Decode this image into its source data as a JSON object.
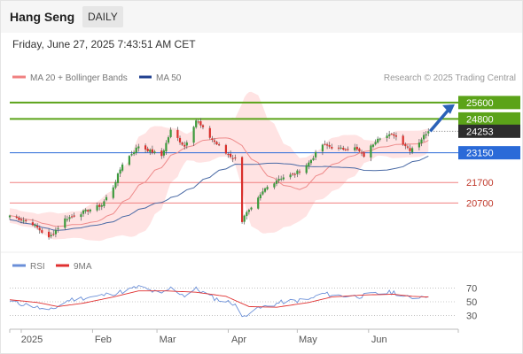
{
  "header": {
    "title": "Hang Seng",
    "timeframe": "DAILY"
  },
  "datetime": "Friday, June 27, 2025 7:43:51 AM CET",
  "legend": {
    "ma20": "MA 20 + Bollinger Bands",
    "ma50": "MA 50",
    "credit": "Research © 2025 Trading Central"
  },
  "rsi_legend": {
    "rsi": "RSI",
    "ma9": "9MA"
  },
  "colors": {
    "bull": "#3c9a3c",
    "bear": "#d9302c",
    "band": "#ffd9d9",
    "ma20": "#ee8b8b",
    "ma50": "#4a6aa5",
    "green_level": "#5ba319",
    "blue_level": "#2a6ad8",
    "red_level": "#f08080",
    "price_box": "#2d2d2d",
    "rsi": "#6a8fd8",
    "rsi_ma": "#e03030",
    "arrow": "#2b62b8"
  },
  "chart_data": [
    {
      "type": "candlestick",
      "title": "Hang Seng",
      "timeframe": "DAILY",
      "xlim": [
        "2024-12-27",
        "2025-07-10"
      ],
      "ylim": [
        18300,
        26500
      ],
      "x_ticks": [
        "2025",
        "Feb",
        "Mar",
        "Apr",
        "May",
        "Jun"
      ],
      "last_price": "24253",
      "anchors": [
        {
          "d": "2024-12-27",
          "c": 20090
        },
        {
          "d": "2025-01-06",
          "c": 19690
        },
        {
          "d": "2025-01-13",
          "c": 18980
        },
        {
          "d": "2025-01-20",
          "c": 19920
        },
        {
          "d": "2025-01-27",
          "c": 20220
        },
        {
          "d": "2025-02-05",
          "c": 20600
        },
        {
          "d": "2025-02-10",
          "c": 21500
        },
        {
          "d": "2025-02-14",
          "c": 22620
        },
        {
          "d": "2025-02-21",
          "c": 23480
        },
        {
          "d": "2025-03-03",
          "c": 23000
        },
        {
          "d": "2025-03-07",
          "c": 24230
        },
        {
          "d": "2025-03-13",
          "c": 23460
        },
        {
          "d": "2025-03-18",
          "c": 24740
        },
        {
          "d": "2025-03-24",
          "c": 23910
        },
        {
          "d": "2025-03-31",
          "c": 23120
        },
        {
          "d": "2025-04-04",
          "c": 22850
        },
        {
          "d": "2025-04-07",
          "c": 19830
        },
        {
          "d": "2025-04-08",
          "c": 20120
        },
        {
          "d": "2025-04-11",
          "c": 20400
        },
        {
          "d": "2025-04-17",
          "c": 21390
        },
        {
          "d": "2025-04-23",
          "c": 21900
        },
        {
          "d": "2025-04-30",
          "c": 22120
        },
        {
          "d": "2025-05-06",
          "c": 22660
        },
        {
          "d": "2025-05-12",
          "c": 23550
        },
        {
          "d": "2025-05-19",
          "c": 23330
        },
        {
          "d": "2025-05-26",
          "c": 23380
        },
        {
          "d": "2025-05-30",
          "c": 23000
        },
        {
          "d": "2025-06-05",
          "c": 23900
        },
        {
          "d": "2025-06-12",
          "c": 24040
        },
        {
          "d": "2025-06-19",
          "c": 23300
        },
        {
          "d": "2025-06-23",
          "c": 23690
        },
        {
          "d": "2025-06-27",
          "c": 24253
        }
      ],
      "levels": [
        {
          "label": "25600",
          "value": 25600,
          "kind": "resistance"
        },
        {
          "label": "24800",
          "value": 24800,
          "kind": "resistance"
        },
        {
          "label": "23150",
          "value": 23150,
          "kind": "pivot"
        },
        {
          "label": "21700",
          "value": 21700,
          "kind": "support"
        },
        {
          "label": "20700",
          "value": 20700,
          "kind": "support"
        }
      ]
    },
    {
      "type": "line",
      "title": "RSI",
      "ylim": [
        15,
        85
      ],
      "y_ticks": [
        70,
        50,
        30
      ],
      "rsi_anchors": [
        {
          "d": "2024-12-27",
          "v": 50
        },
        {
          "d": "2025-01-06",
          "v": 44
        },
        {
          "d": "2025-01-13",
          "v": 36
        },
        {
          "d": "2025-01-22",
          "v": 53
        },
        {
          "d": "2025-02-03",
          "v": 58
        },
        {
          "d": "2025-02-14",
          "v": 65
        },
        {
          "d": "2025-02-21",
          "v": 72
        },
        {
          "d": "2025-03-03",
          "v": 61
        },
        {
          "d": "2025-03-07",
          "v": 70
        },
        {
          "d": "2025-03-13",
          "v": 59
        },
        {
          "d": "2025-03-18",
          "v": 69
        },
        {
          "d": "2025-03-26",
          "v": 55
        },
        {
          "d": "2025-04-04",
          "v": 47
        },
        {
          "d": "2025-04-07",
          "v": 26
        },
        {
          "d": "2025-04-10",
          "v": 35
        },
        {
          "d": "2025-04-17",
          "v": 43
        },
        {
          "d": "2025-04-25",
          "v": 50
        },
        {
          "d": "2025-05-06",
          "v": 53
        },
        {
          "d": "2025-05-12",
          "v": 62
        },
        {
          "d": "2025-05-19",
          "v": 59
        },
        {
          "d": "2025-05-28",
          "v": 58
        },
        {
          "d": "2025-06-05",
          "v": 62
        },
        {
          "d": "2025-06-12",
          "v": 64
        },
        {
          "d": "2025-06-19",
          "v": 55
        },
        {
          "d": "2025-06-27",
          "v": 60
        }
      ],
      "ma9_anchors": [
        {
          "d": "2024-12-27",
          "v": 53
        },
        {
          "d": "2025-01-08",
          "v": 49
        },
        {
          "d": "2025-01-17",
          "v": 43
        },
        {
          "d": "2025-01-28",
          "v": 48
        },
        {
          "d": "2025-02-10",
          "v": 57
        },
        {
          "d": "2025-02-21",
          "v": 66
        },
        {
          "d": "2025-03-05",
          "v": 66
        },
        {
          "d": "2025-03-18",
          "v": 64
        },
        {
          "d": "2025-03-31",
          "v": 58
        },
        {
          "d": "2025-04-10",
          "v": 43
        },
        {
          "d": "2025-04-22",
          "v": 42
        },
        {
          "d": "2025-05-06",
          "v": 49
        },
        {
          "d": "2025-05-16",
          "v": 57
        },
        {
          "d": "2025-05-30",
          "v": 60
        },
        {
          "d": "2025-06-12",
          "v": 61
        },
        {
          "d": "2025-06-20",
          "v": 58
        },
        {
          "d": "2025-06-27",
          "v": 57
        }
      ]
    }
  ]
}
